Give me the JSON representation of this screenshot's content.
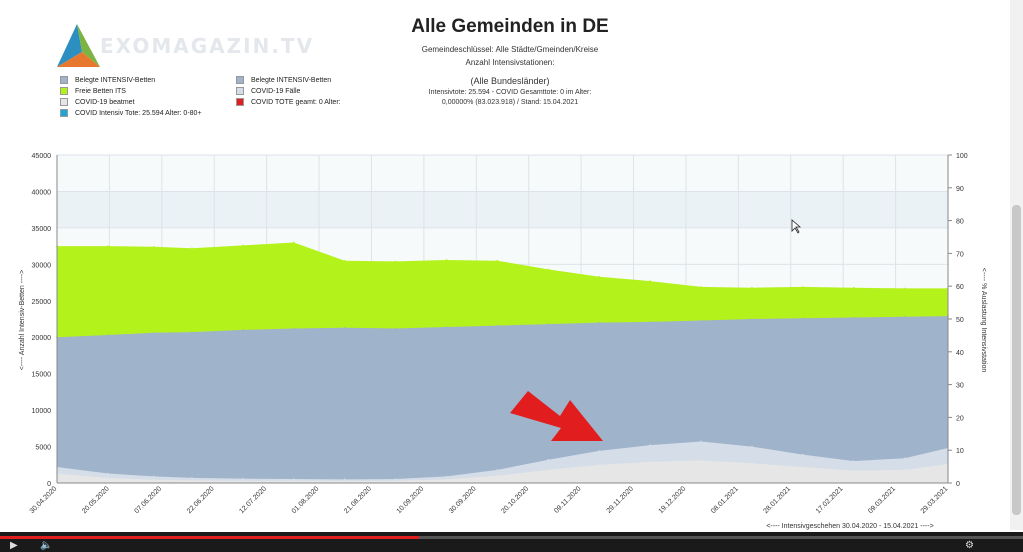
{
  "logo": {
    "text": "EXOMAGAZIN.TV"
  },
  "header": {
    "title": "Alle Gemeinden in DE",
    "line1": "Gemeindeschlüssel: Alle Städte/Gmeinden/Kreise",
    "line2": "Anzahl Intensivstationen:",
    "line3": "(Alle Bundesländer)",
    "line4": "Intensivtote: 25.594 - COVID Gesamttote: 0 im Alter:",
    "line5": "0,00000% (83.023.918) / Stand: 15.04.2021"
  },
  "legend": [
    {
      "label": "Belegte INTENSIV-Betten",
      "color": "#9fb3cb"
    },
    {
      "label": "Freie Betten ITS",
      "color": "#b4f21c"
    },
    {
      "label": "COVID-19 beatmet",
      "color": "#e6e6e6"
    },
    {
      "label": "COVID Intensiv Tote: 25.594 Alter: 0-80+",
      "color": "#1aa7d6"
    },
    {
      "label": "Belegte INTENSIV-Betten",
      "color": "#9fb3cb"
    },
    {
      "label": "COVID-19 Fälle",
      "color": "#d4dde8"
    },
    {
      "label": "COVID TOTE geamt: 0 Alter:",
      "color": "#e21d1d"
    }
  ],
  "player": {
    "progress": 0.41
  },
  "chart_data": {
    "type": "area",
    "xlabel": "<---- Intensivgeschehen 30.04.2020 - 15.04.2021 ---->",
    "ylabel_left": "<---- Anzahl Intensiv-Betten ---->",
    "ylabel_right": "<---- % Auslastung Intensivstation",
    "ylim_left": [
      0,
      45000
    ],
    "ylim_right": [
      0,
      100
    ],
    "yticks_left": [
      "0",
      "5000",
      "10000",
      "15000",
      "20000",
      "25000",
      "30000",
      "35000",
      "40000",
      "45000"
    ],
    "yticks_right": [
      "0",
      "10",
      "20",
      "30",
      "40",
      "50",
      "60",
      "70",
      "80",
      "90",
      "100"
    ],
    "x_tick_labels": [
      "30.04.2020",
      "20.05.2020",
      "07.06.2020",
      "22.06.2020",
      "12.07.2020",
      "01.08.2020",
      "21.08.2020",
      "10.09.2020",
      "30.09.2020",
      "20.10.2020",
      "09.11.2020",
      "29.11.2020",
      "19.12.2020",
      "08.01.2021",
      "28.01.2021",
      "17.02.2021",
      "09.03.2021",
      "29.03.2021"
    ],
    "x": [
      0,
      20,
      38,
      53,
      73,
      93,
      113,
      133,
      153,
      173,
      193,
      213,
      233,
      253,
      273,
      293,
      313,
      333,
      350
    ],
    "series": [
      {
        "name": "Belegte INTENSIV-Betten",
        "color": "#9fb3cb",
        "values": [
          20000,
          20300,
          20600,
          20700,
          21000,
          21200,
          21300,
          21200,
          21400,
          21600,
          21800,
          22000,
          22100,
          22300,
          22500,
          22600,
          22700,
          22800,
          22900
        ]
      },
      {
        "name": "Freie Betten ITS",
        "color": "#b4f21c",
        "values": [
          32500,
          32500,
          32400,
          32200,
          32600,
          33000,
          30500,
          30400,
          30600,
          30500,
          29300,
          28300,
          27700,
          26900,
          26800,
          26900,
          26800,
          26700,
          26700
        ]
      },
      {
        "name": "COVID-19 Fälle",
        "color": "#d4dde8",
        "values": [
          2200,
          1300,
          900,
          700,
          600,
          550,
          500,
          550,
          900,
          1800,
          3200,
          4400,
          5200,
          5700,
          5000,
          3900,
          3000,
          3400,
          4800
        ]
      },
      {
        "name": "COVID-19 beatmet",
        "color": "#e6e6e6",
        "values": [
          1300,
          700,
          450,
          350,
          300,
          300,
          280,
          300,
          500,
          1000,
          1800,
          2500,
          2900,
          3100,
          2700,
          2200,
          1700,
          1800,
          2600
        ]
      }
    ]
  }
}
